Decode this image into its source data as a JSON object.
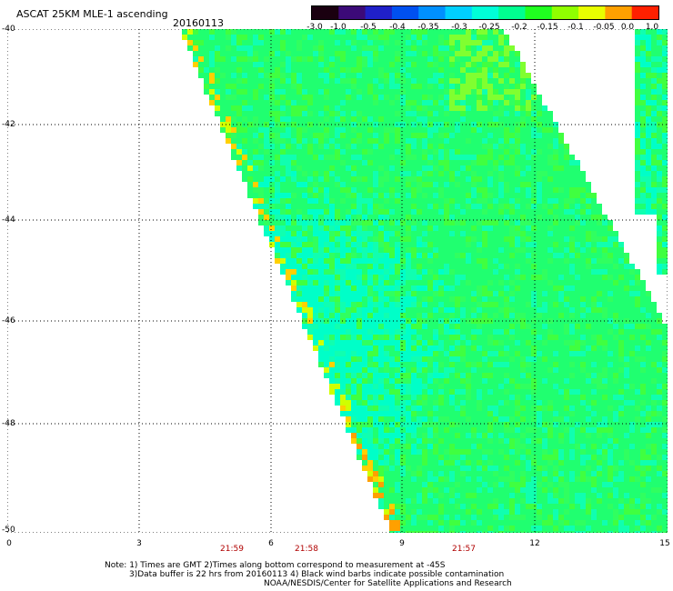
{
  "header": {
    "title": "ASCAT 25KM MLE-1 ascending",
    "date": "20160113"
  },
  "colorbar": {
    "labels": [
      "-3.0",
      "-1.0",
      "-0.5",
      "-0.4",
      "-0.35",
      "-0.3",
      "-0.25",
      "-0.2",
      "-0.15",
      "-0.1",
      "-0.05",
      "0.0",
      "1.0"
    ],
    "colors": [
      "#1a0010",
      "#3c0a78",
      "#2020c8",
      "#0050f0",
      "#0090ff",
      "#00d0ff",
      "#00ffd8",
      "#00ff90",
      "#20ff20",
      "#90ff00",
      "#e8ff00",
      "#ffa000",
      "#ff2000"
    ]
  },
  "axes": {
    "y_labels": [
      "-40",
      "-42",
      "-44",
      "-46",
      "-48",
      "-50"
    ],
    "x_labels": [
      "0",
      "3",
      "6",
      "9",
      "12",
      "15"
    ],
    "time_labels": [
      "21:59",
      "21:58",
      "21:57"
    ],
    "xlim": [
      0,
      15
    ],
    "ylim": [
      -50,
      -40
    ]
  },
  "map": {
    "grid_lines": "dotted",
    "swath_colors": [
      "#00ffc8",
      "#20ff70",
      "#40ff40",
      "#80ff30",
      "#10ffb0",
      "#30ff60"
    ],
    "edge_colors": [
      "#d0ff00",
      "#ffd000",
      "#ffa000"
    ]
  },
  "notes": {
    "line1": "Note: 1) Times are GMT 2)Times along bottom correspond to measurement at -45S",
    "line2": "3)Data buffer is 22 hrs from 20160113 4) Black wind barbs indicate possible contamination",
    "line3": "NOAA/NESDIS/Center for Satellite Applications and Research"
  }
}
